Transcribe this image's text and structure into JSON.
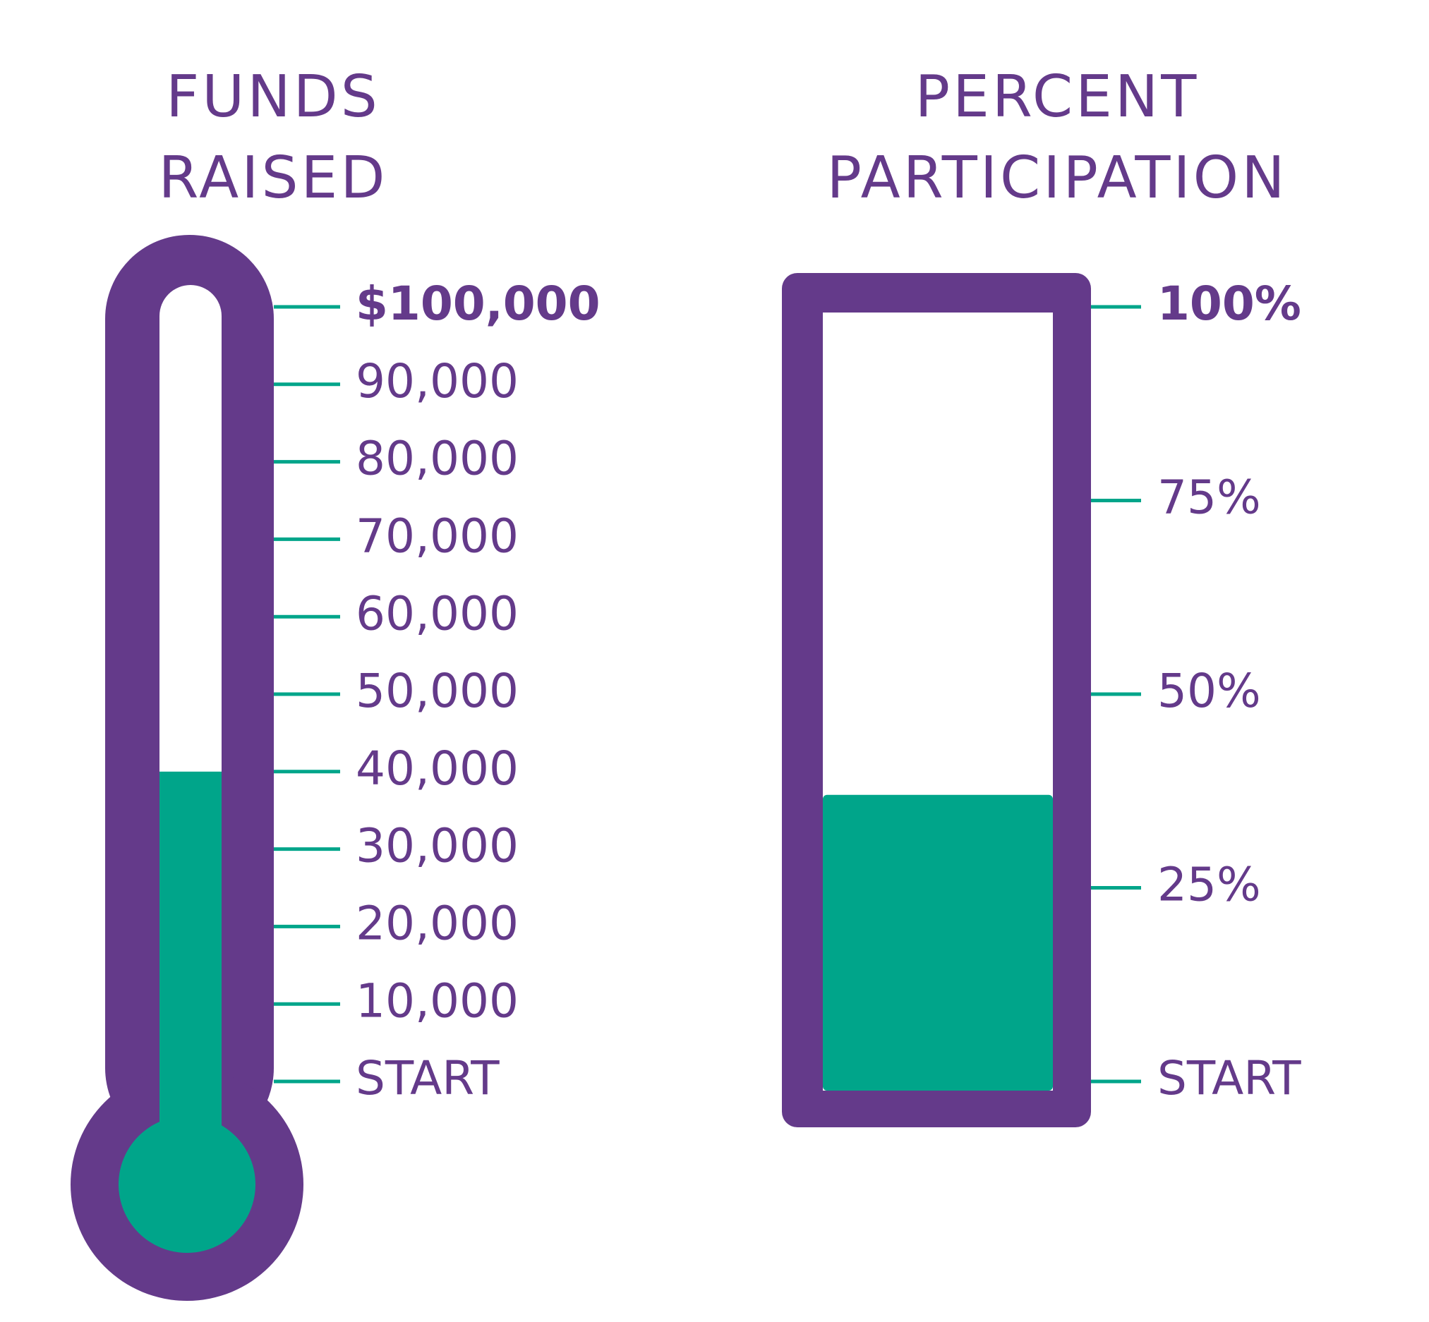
{
  "chart_data": [
    {
      "type": "thermometer",
      "title": "FUNDS RAISED",
      "values": [
        40000
      ],
      "color": "#00a58a",
      "ylim": [
        0,
        100000
      ],
      "yticks": [
        {
          "value": 0,
          "label": "START"
        },
        {
          "value": 10000,
          "label": "10,000"
        },
        {
          "value": 20000,
          "label": "20,000"
        },
        {
          "value": 30000,
          "label": "30,000"
        },
        {
          "value": 40000,
          "label": "40,000"
        },
        {
          "value": 50000,
          "label": "50,000"
        },
        {
          "value": 60000,
          "label": "60,000"
        },
        {
          "value": 70000,
          "label": "70,000"
        },
        {
          "value": 80000,
          "label": "80,000"
        },
        {
          "value": 90000,
          "label": "90,000"
        },
        {
          "value": 100000,
          "label": "$100,000"
        }
      ]
    },
    {
      "type": "progress",
      "title": "PERCENT PARTICIPATION",
      "values": [
        37
      ],
      "color": "#00a58a",
      "ylim": [
        0,
        100
      ],
      "yticks": [
        {
          "value": 0,
          "label": "START"
        },
        {
          "value": 25,
          "label": "25%"
        },
        {
          "value": 50,
          "label": "50%"
        },
        {
          "value": 75,
          "label": "75%"
        },
        {
          "value": 100,
          "label": "100%"
        }
      ]
    }
  ]
}
